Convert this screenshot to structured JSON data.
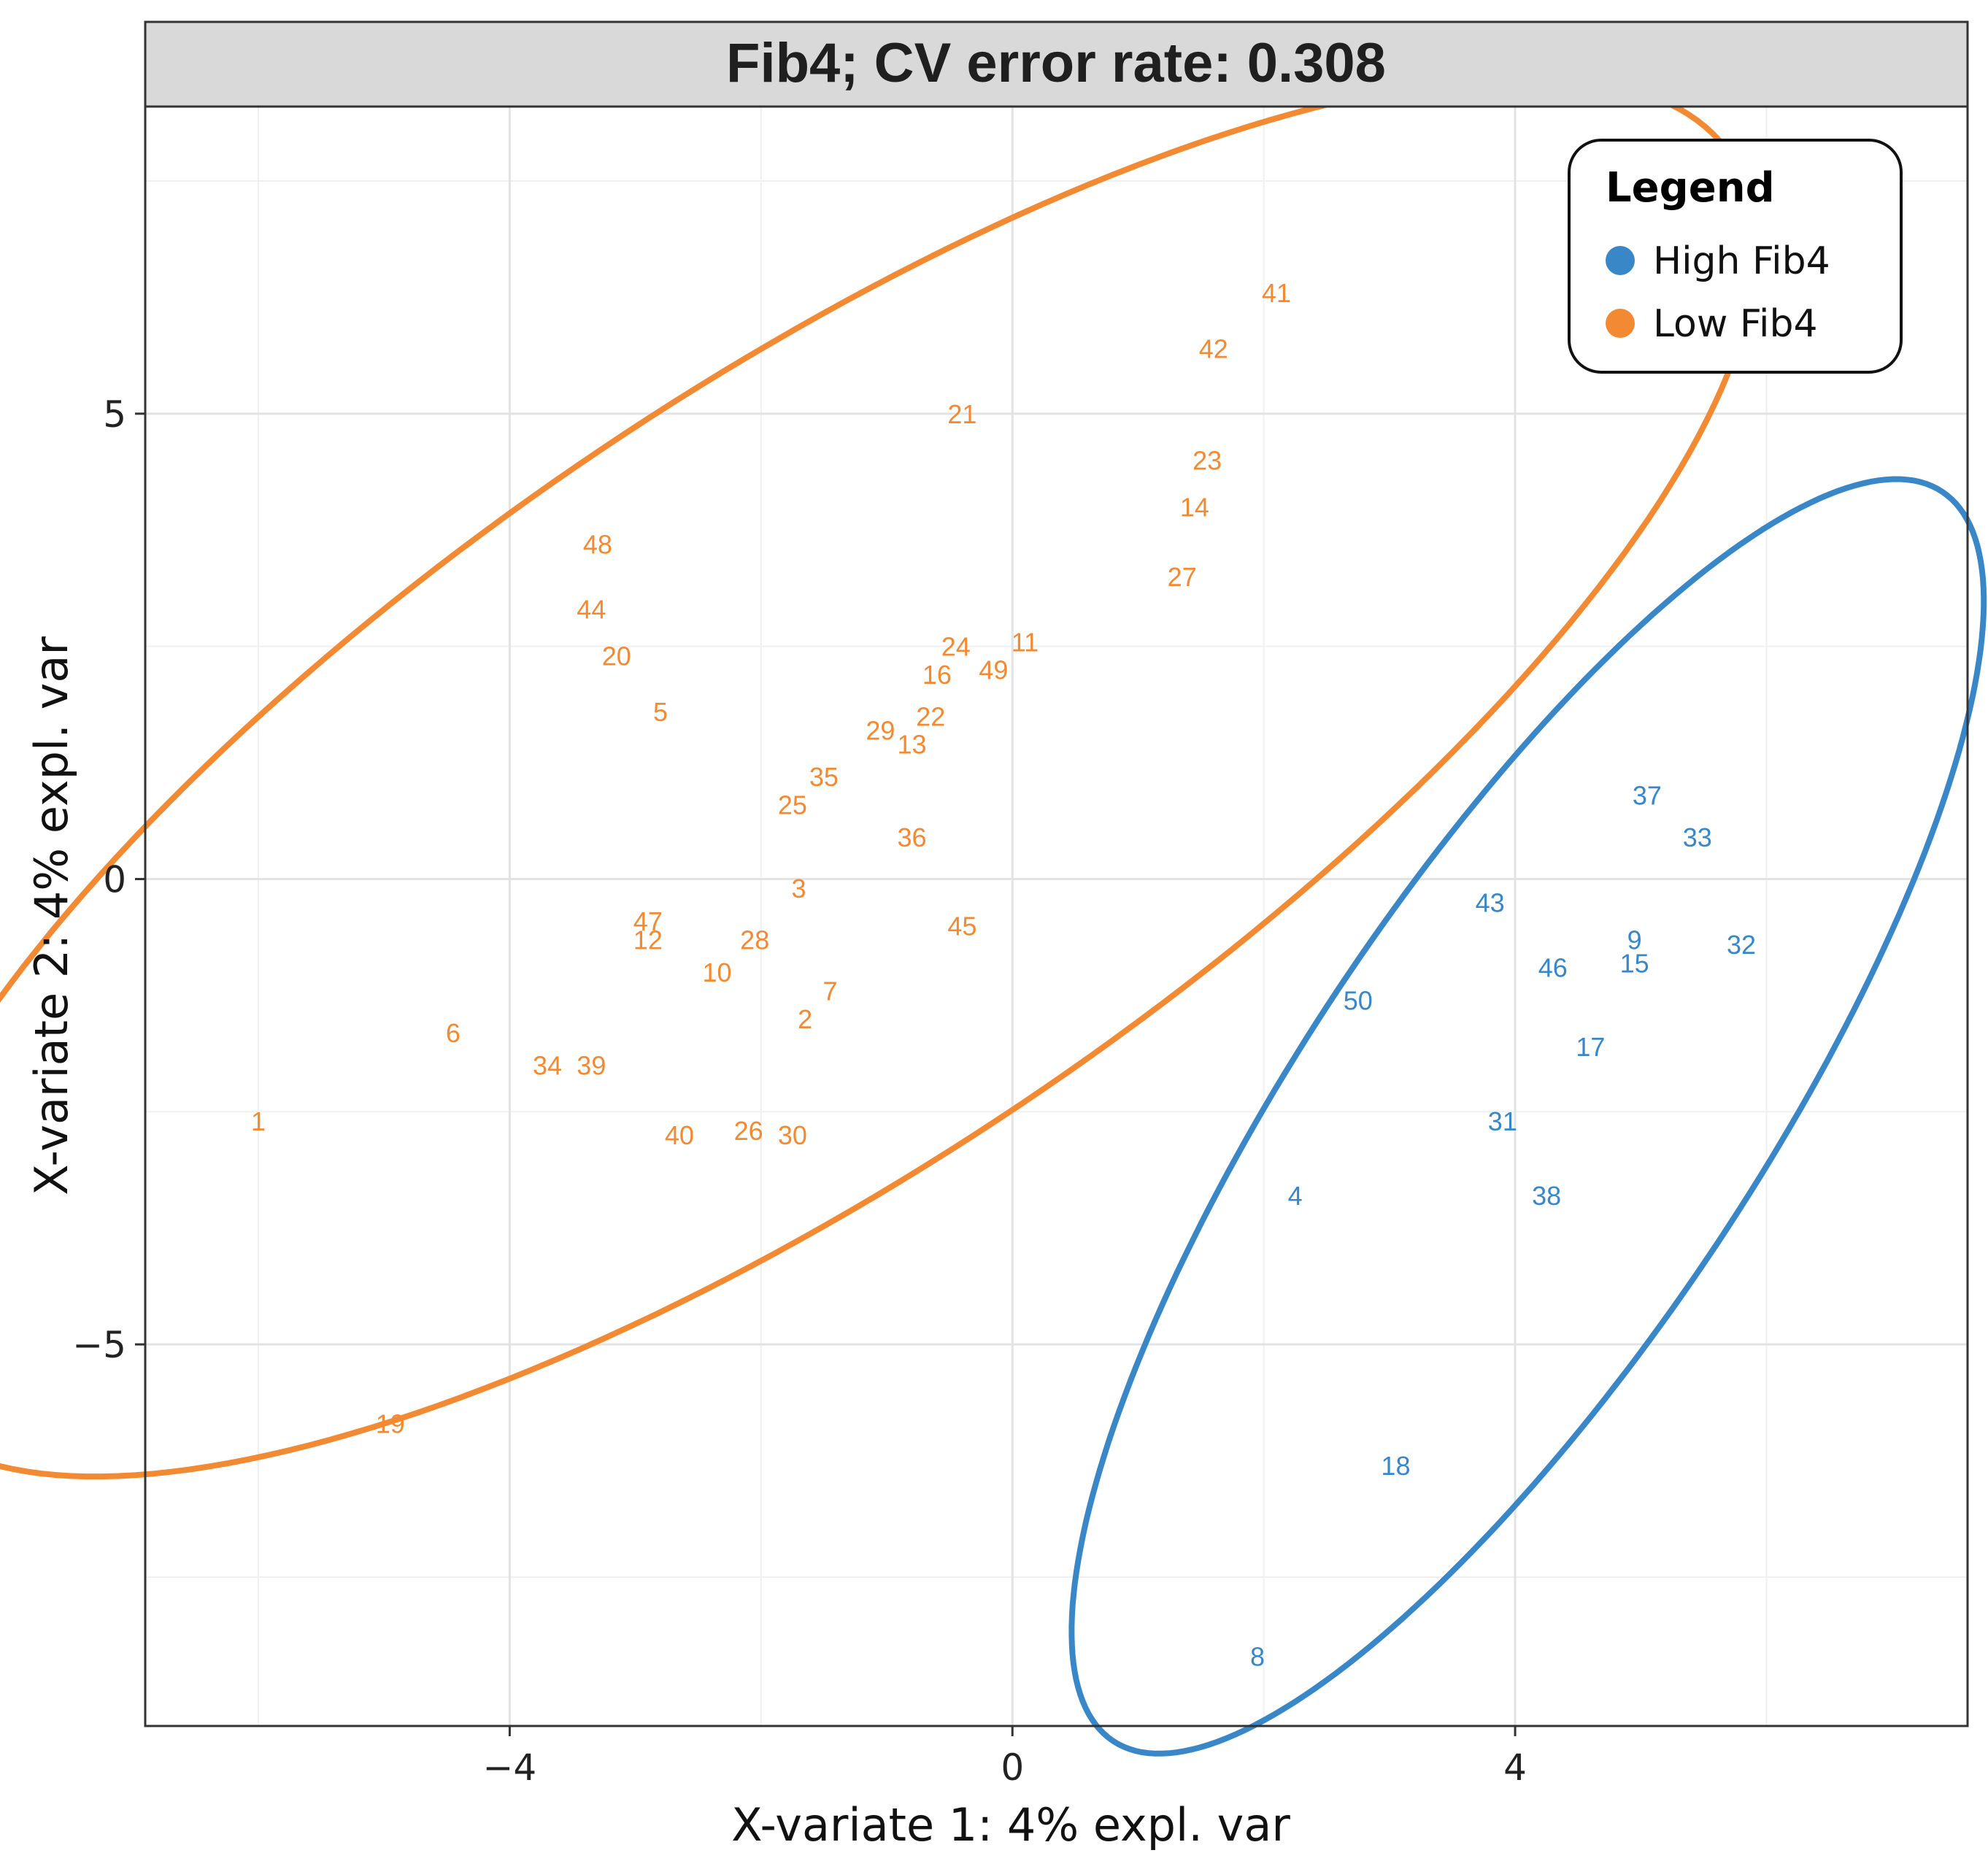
{
  "chart_data": {
    "type": "scatter",
    "title": "Fib4; CV error rate: 0.308",
    "xlabel": "X-variate 1: 4% expl. var",
    "ylabel": "X-variate 2: 4% expl. var",
    "xlim": [
      -6.9,
      7.6
    ],
    "ylim": [
      -9.1,
      8.3
    ],
    "x_ticks": [
      -4,
      0,
      4
    ],
    "x_tick_labels": [
      "−4",
      "0",
      "4"
    ],
    "y_ticks": [
      5,
      0,
      -5
    ],
    "y_tick_labels": [
      "5",
      "0",
      "−5"
    ],
    "grid": true,
    "legend": {
      "title": "Legend",
      "position": "top-right",
      "entries": [
        {
          "name": "High Fib4",
          "color": "#3a87c8"
        },
        {
          "name": "Low Fib4",
          "color": "#f28a33"
        }
      ]
    },
    "series": [
      {
        "name": "Low Fib4",
        "color": "#f28a33",
        "points": [
          {
            "label": "41",
            "x": 2.1,
            "y": 6.3
          },
          {
            "label": "42",
            "x": 1.6,
            "y": 5.7
          },
          {
            "label": "21",
            "x": -0.4,
            "y": 5.0
          },
          {
            "label": "23",
            "x": 1.55,
            "y": 4.5
          },
          {
            "label": "14",
            "x": 1.45,
            "y": 4.0
          },
          {
            "label": "48",
            "x": -3.3,
            "y": 3.6
          },
          {
            "label": "27",
            "x": 1.35,
            "y": 3.25
          },
          {
            "label": "44",
            "x": -3.35,
            "y": 2.9
          },
          {
            "label": "24",
            "x": -0.45,
            "y": 2.5
          },
          {
            "label": "11",
            "x": 0.1,
            "y": 2.55
          },
          {
            "label": "20",
            "x": -3.15,
            "y": 2.4
          },
          {
            "label": "16",
            "x": -0.6,
            "y": 2.2
          },
          {
            "label": "49",
            "x": -0.15,
            "y": 2.25
          },
          {
            "label": "5",
            "x": -2.8,
            "y": 1.8
          },
          {
            "label": "22",
            "x": -0.65,
            "y": 1.75
          },
          {
            "label": "29",
            "x": -1.05,
            "y": 1.6
          },
          {
            "label": "13",
            "x": -0.8,
            "y": 1.45
          },
          {
            "label": "35",
            "x": -1.5,
            "y": 1.1
          },
          {
            "label": "25",
            "x": -1.75,
            "y": 0.8
          },
          {
            "label": "36",
            "x": -0.8,
            "y": 0.45
          },
          {
            "label": "3",
            "x": -1.7,
            "y": -0.1
          },
          {
            "label": "47",
            "x": -2.9,
            "y": -0.45
          },
          {
            "label": "45",
            "x": -0.4,
            "y": -0.5
          },
          {
            "label": "12",
            "x": -2.9,
            "y": -0.65
          },
          {
            "label": "28",
            "x": -2.05,
            "y": -0.65
          },
          {
            "label": "10",
            "x": -2.35,
            "y": -1.0
          },
          {
            "label": "7",
            "x": -1.45,
            "y": -1.2
          },
          {
            "label": "2",
            "x": -1.65,
            "y": -1.5
          },
          {
            "label": "6",
            "x": -4.45,
            "y": -1.65
          },
          {
            "label": "34",
            "x": -3.7,
            "y": -2.0
          },
          {
            "label": "39",
            "x": -3.35,
            "y": -2.0
          },
          {
            "label": "26",
            "x": -2.1,
            "y": -2.7
          },
          {
            "label": "40",
            "x": -2.65,
            "y": -2.75
          },
          {
            "label": "30",
            "x": -1.75,
            "y": -2.75
          },
          {
            "label": "1",
            "x": -6.0,
            "y": -2.6
          },
          {
            "label": "19",
            "x": -4.95,
            "y": -5.85
          }
        ]
      },
      {
        "name": "High Fib4",
        "color": "#3a87c8",
        "points": [
          {
            "label": "37",
            "x": 5.05,
            "y": 0.9
          },
          {
            "label": "33",
            "x": 5.45,
            "y": 0.45
          },
          {
            "label": "43",
            "x": 3.8,
            "y": -0.25
          },
          {
            "label": "9",
            "x": 4.95,
            "y": -0.65
          },
          {
            "label": "32",
            "x": 5.8,
            "y": -0.7
          },
          {
            "label": "46",
            "x": 4.3,
            "y": -0.95
          },
          {
            "label": "15",
            "x": 4.95,
            "y": -0.9
          },
          {
            "label": "50",
            "x": 2.75,
            "y": -1.3
          },
          {
            "label": "17",
            "x": 4.6,
            "y": -1.8
          },
          {
            "label": "31",
            "x": 3.9,
            "y": -2.6
          },
          {
            "label": "4",
            "x": 2.25,
            "y": -3.4
          },
          {
            "label": "38",
            "x": 4.25,
            "y": -3.4
          },
          {
            "label": "18",
            "x": 3.05,
            "y": -6.3
          },
          {
            "label": "8",
            "x": 1.95,
            "y": -8.35
          }
        ]
      }
    ],
    "ellipses": [
      {
        "group": "Low Fib4",
        "color": "#f28a33",
        "center": [
          -1.6,
          1.1
        ],
        "semi_major": 9.97,
        "semi_minor": 3.7,
        "angle_deg": 45
      },
      {
        "group": "High Fib4",
        "color": "#3a87c8",
        "center": [
          4.1,
          -2.55
        ],
        "semi_major": 7.5,
        "semi_minor": 1.95,
        "angle_deg": 65
      }
    ]
  }
}
